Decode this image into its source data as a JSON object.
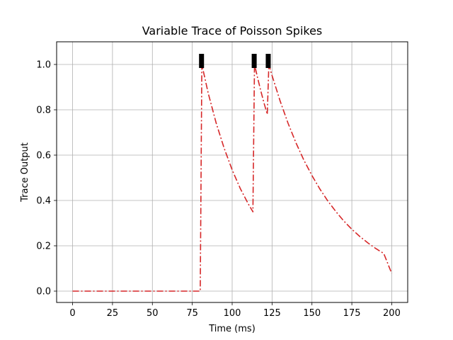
{
  "chart_data": {
    "type": "line",
    "title": "Variable Trace of Poisson Spikes",
    "xlabel": "Time (ms)",
    "ylabel": "Trace Output",
    "xlim": [
      -10,
      210
    ],
    "ylim": [
      -0.05,
      1.1
    ],
    "xticks": [
      0,
      25,
      50,
      75,
      100,
      125,
      150,
      175,
      200
    ],
    "yticks": [
      0.0,
      0.2,
      0.4,
      0.6,
      0.8,
      1.0
    ],
    "ytick_format": 1,
    "grid": true,
    "legend": "none",
    "series": [
      {
        "style": "dash-dot",
        "color": "#d62728",
        "points": [
          [
            0,
            0.0
          ],
          [
            79.5,
            0.0
          ],
          [
            80,
            0.0
          ],
          [
            81,
            1.0
          ],
          [
            85,
            0.873
          ],
          [
            90,
            0.741
          ],
          [
            95,
            0.63
          ],
          [
            100,
            0.535
          ],
          [
            105,
            0.454
          ],
          [
            110,
            0.386
          ],
          [
            113,
            0.35
          ],
          [
            114,
            1.0
          ],
          [
            116,
            0.939
          ],
          [
            118,
            0.882
          ],
          [
            120,
            0.829
          ],
          [
            122,
            0.78
          ],
          [
            123,
            1.0
          ],
          [
            125,
            0.951
          ],
          [
            130,
            0.84
          ],
          [
            135,
            0.741
          ],
          [
            140,
            0.654
          ],
          [
            145,
            0.577
          ],
          [
            150,
            0.51
          ],
          [
            155,
            0.45
          ],
          [
            160,
            0.397
          ],
          [
            165,
            0.351
          ],
          [
            170,
            0.309
          ],
          [
            175,
            0.273
          ],
          [
            180,
            0.241
          ],
          [
            185,
            0.213
          ],
          [
            190,
            0.188
          ],
          [
            195,
            0.166
          ],
          [
            200,
            0.078
          ]
        ]
      }
    ],
    "spike_markers": {
      "color": "#000000",
      "y": 1.0,
      "x": [
        80.8,
        113.8,
        122.6
      ]
    }
  }
}
